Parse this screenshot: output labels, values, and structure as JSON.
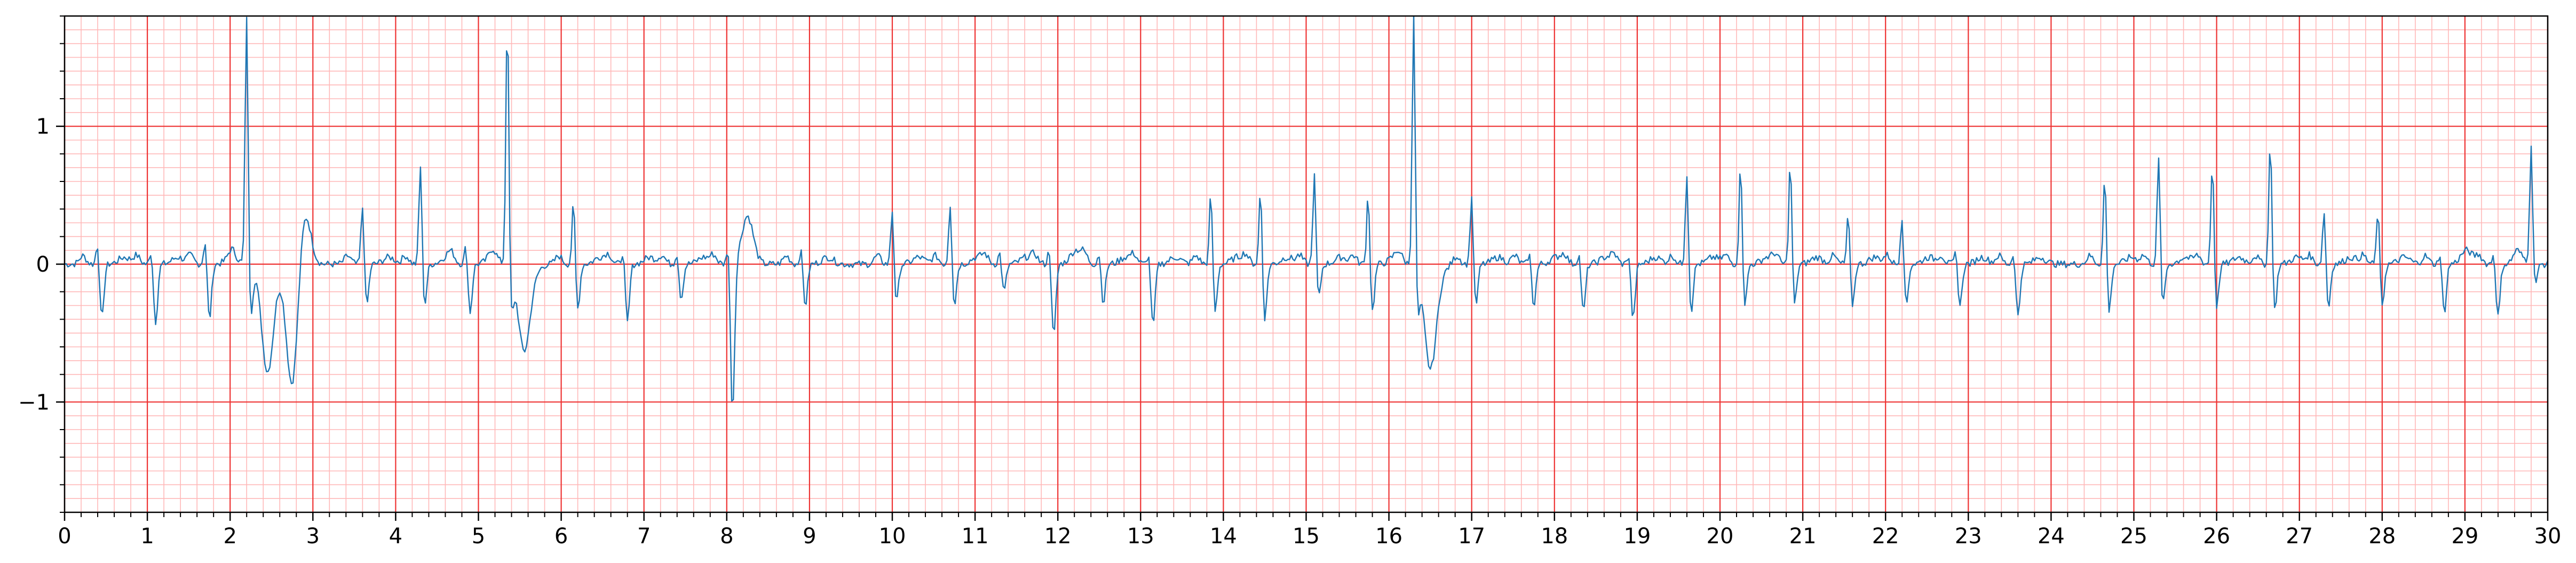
{
  "chart_data": {
    "type": "line",
    "title": "",
    "xlabel": "",
    "ylabel": "",
    "xlim": [
      0,
      30
    ],
    "ylim": [
      -1.8,
      1.8
    ],
    "x_ticks": [
      0,
      1,
      2,
      3,
      4,
      5,
      6,
      7,
      8,
      9,
      10,
      11,
      12,
      13,
      14,
      15,
      16,
      17,
      18,
      19,
      20,
      21,
      22,
      23,
      24,
      25,
      26,
      27,
      28,
      29,
      30
    ],
    "x_tick_labels": [
      "0",
      "1",
      "2",
      "3",
      "4",
      "5",
      "6",
      "7",
      "8",
      "9",
      "10",
      "11",
      "12",
      "13",
      "14",
      "15",
      "16",
      "17",
      "18",
      "19",
      "20",
      "21",
      "22",
      "23",
      "24",
      "25",
      "26",
      "27",
      "28",
      "29",
      "30"
    ],
    "y_ticks": [
      -1,
      0,
      1
    ],
    "y_tick_labels": [
      "−1",
      "0",
      "1"
    ],
    "grid": {
      "major": true,
      "minor": true,
      "major_x_step": 1,
      "major_y_step": 1,
      "minor_x_step": 0.2,
      "minor_y_step": 0.1,
      "major_color": "#ee3333",
      "minor_color": "#ffb8b8"
    },
    "line_color": "#1f77b4",
    "sample_rate_hz": 50,
    "beats": [
      {
        "t": 0.4,
        "r": 0.18,
        "s": -0.4,
        "t_wave": 0.05
      },
      {
        "t": 1.05,
        "r": 0.12,
        "s": -0.42,
        "t_wave": 0.05
      },
      {
        "t": 1.7,
        "r": 0.2,
        "s": -0.4,
        "t_wave": 0.05
      },
      {
        "t": 2.2,
        "r": 1.85,
        "s": -0.35,
        "t_wave": -0.05
      },
      {
        "t": 2.45,
        "wide": -0.75
      },
      {
        "t": 2.75,
        "wide": -0.9
      },
      {
        "t": 2.9,
        "pos_wave": 0.4
      },
      {
        "t": 3.6,
        "r": 0.45,
        "s": -0.3,
        "t_wave": 0.05
      },
      {
        "t": 4.3,
        "r": 0.75,
        "s": -0.3,
        "t_wave": 0.05
      },
      {
        "t": 4.85,
        "r": 0.15,
        "s": -0.35,
        "t_wave": 0.05
      },
      {
        "t": 5.35,
        "r": 1.85,
        "s": -0.3,
        "t_wave": -0.05
      },
      {
        "t": 5.55,
        "wide": -0.62
      },
      {
        "t": 6.15,
        "r": 0.48,
        "s": -0.33,
        "t_wave": 0.05
      },
      {
        "t": 6.75,
        "r": 0.12,
        "s": -0.43,
        "t_wave": 0.05
      },
      {
        "t": 7.4,
        "r": 0.1,
        "s": -0.25,
        "t_wave": 0.05
      },
      {
        "t": 8.02,
        "r": 0.2,
        "s": -1.08,
        "t_wave": 0.0
      },
      {
        "t": 8.25,
        "pos_wave": 0.35
      },
      {
        "t": 8.9,
        "r": 0.12,
        "s": -0.3,
        "t_wave": 0.05
      },
      {
        "t": 10.0,
        "r": 0.42,
        "s": -0.28,
        "t_wave": 0.05
      },
      {
        "t": 10.7,
        "r": 0.47,
        "s": -0.3,
        "t_wave": 0.05
      },
      {
        "t": 11.3,
        "r": 0.1,
        "s": -0.2,
        "t_wave": 0.05
      },
      {
        "t": 11.9,
        "r": 0.15,
        "s": -0.53,
        "t_wave": 0.1
      },
      {
        "t": 12.5,
        "r": 0.1,
        "s": -0.28,
        "t_wave": 0.05
      },
      {
        "t": 13.1,
        "r": 0.1,
        "s": -0.45,
        "t_wave": 0.05
      },
      {
        "t": 13.85,
        "r": 0.55,
        "s": -0.35,
        "t_wave": 0.05
      },
      {
        "t": 14.45,
        "r": 0.58,
        "s": -0.4,
        "t_wave": 0.05
      },
      {
        "t": 15.1,
        "r": 0.67,
        "s": -0.25,
        "t_wave": 0.05
      },
      {
        "t": 15.75,
        "r": 0.55,
        "s": -0.35,
        "t_wave": 0.05
      },
      {
        "t": 16.3,
        "r": 1.85,
        "s": -0.3,
        "t_wave": -0.05
      },
      {
        "t": 16.5,
        "wide": -0.75
      },
      {
        "t": 17.0,
        "r": 0.52,
        "s": -0.3,
        "t_wave": 0.05
      },
      {
        "t": 17.7,
        "r": 0.1,
        "s": -0.3,
        "t_wave": 0.05
      },
      {
        "t": 18.3,
        "r": 0.1,
        "s": -0.35,
        "t_wave": 0.05
      },
      {
        "t": 18.9,
        "r": 0.1,
        "s": -0.4,
        "t_wave": 0.05
      },
      {
        "t": 19.6,
        "r": 0.7,
        "s": -0.35,
        "t_wave": 0.05
      },
      {
        "t": 20.25,
        "r": 0.76,
        "s": -0.3,
        "t_wave": 0.05
      },
      {
        "t": 20.85,
        "r": 0.78,
        "s": -0.3,
        "t_wave": 0.05
      },
      {
        "t": 21.55,
        "r": 0.38,
        "s": -0.3,
        "t_wave": 0.05
      },
      {
        "t": 22.2,
        "r": 0.38,
        "s": -0.3,
        "t_wave": 0.05
      },
      {
        "t": 22.85,
        "r": 0.1,
        "s": -0.3,
        "t_wave": 0.05
      },
      {
        "t": 23.55,
        "r": 0.1,
        "s": -0.38,
        "t_wave": 0.05
      },
      {
        "t": 24.65,
        "r": 0.68,
        "s": -0.35,
        "t_wave": 0.05
      },
      {
        "t": 25.3,
        "r": 0.8,
        "s": -0.3,
        "t_wave": 0.05
      },
      {
        "t": 25.95,
        "r": 0.78,
        "s": -0.32,
        "t_wave": 0.05
      },
      {
        "t": 26.65,
        "r": 0.95,
        "s": -0.35,
        "t_wave": 0.05
      },
      {
        "t": 27.3,
        "r": 0.42,
        "s": -0.32,
        "t_wave": 0.05
      },
      {
        "t": 27.95,
        "r": 0.42,
        "s": -0.3,
        "t_wave": 0.05
      },
      {
        "t": 28.7,
        "r": 0.1,
        "s": -0.35,
        "t_wave": 0.1
      },
      {
        "t": 29.35,
        "r": 0.1,
        "s": -0.38,
        "t_wave": 0.05
      },
      {
        "t": 29.8,
        "r": 0.85,
        "s": -0.15,
        "t_wave": 0.0
      }
    ]
  }
}
